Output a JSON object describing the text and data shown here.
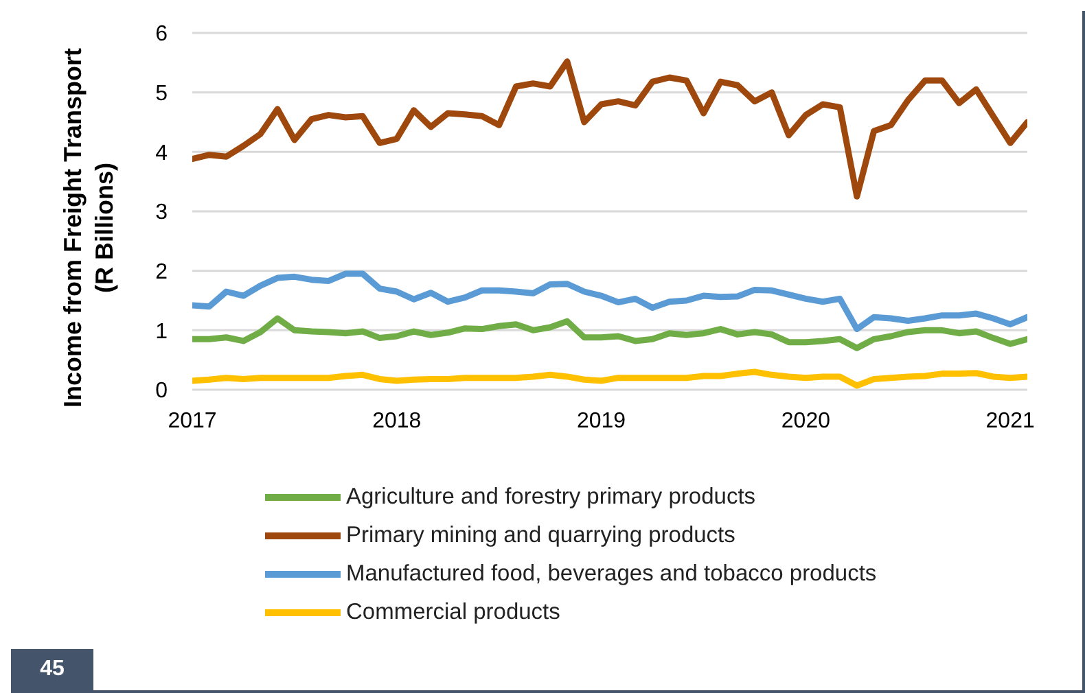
{
  "chart_data": {
    "type": "line",
    "ylabel": "Income from Freight Transport\n(R Billions)",
    "x": [
      "2017-01",
      "2017-02",
      "2017-03",
      "2017-04",
      "2017-05",
      "2017-06",
      "2017-07",
      "2017-08",
      "2017-09",
      "2017-10",
      "2017-11",
      "2017-12",
      "2018-01",
      "2018-02",
      "2018-03",
      "2018-04",
      "2018-05",
      "2018-06",
      "2018-07",
      "2018-08",
      "2018-09",
      "2018-10",
      "2018-11",
      "2018-12",
      "2019-01",
      "2019-02",
      "2019-03",
      "2019-04",
      "2019-05",
      "2019-06",
      "2019-07",
      "2019-08",
      "2019-09",
      "2019-10",
      "2019-11",
      "2019-12",
      "2020-01",
      "2020-02",
      "2020-03",
      "2020-04",
      "2020-05",
      "2020-06",
      "2020-07",
      "2020-08",
      "2020-09",
      "2020-10",
      "2020-11",
      "2020-12",
      "2021-01",
      "2021-02"
    ],
    "series": [
      {
        "name": "Agriculture and forestry primary products",
        "color": "#70ad47",
        "values": [
          0.85,
          0.85,
          0.88,
          0.82,
          0.97,
          1.2,
          1.0,
          0.98,
          0.97,
          0.95,
          0.98,
          0.87,
          0.9,
          0.98,
          0.92,
          0.96,
          1.03,
          1.02,
          1.07,
          1.1,
          1.0,
          1.05,
          1.15,
          0.88,
          0.88,
          0.9,
          0.82,
          0.85,
          0.95,
          0.92,
          0.95,
          1.02,
          0.93,
          0.97,
          0.93,
          0.8,
          0.8,
          0.82,
          0.85,
          0.7,
          0.85,
          0.9,
          0.97,
          1.0,
          1.0,
          0.95,
          0.98,
          0.87,
          0.77,
          0.85
        ]
      },
      {
        "name": "Primary mining and quarrying products",
        "color": "#9e480e",
        "values": [
          3.88,
          3.95,
          3.92,
          4.1,
          4.3,
          4.72,
          4.2,
          4.55,
          4.62,
          4.58,
          4.6,
          4.15,
          4.22,
          4.7,
          4.42,
          4.65,
          4.63,
          4.6,
          4.45,
          5.1,
          5.15,
          5.1,
          5.52,
          4.5,
          4.8,
          4.85,
          4.78,
          5.18,
          5.25,
          5.2,
          4.65,
          5.18,
          5.12,
          4.85,
          5.0,
          4.28,
          4.62,
          4.8,
          4.75,
          3.25,
          4.35,
          4.45,
          4.87,
          5.2,
          5.2,
          4.82,
          5.05,
          4.6,
          4.15,
          4.5
        ]
      },
      {
        "name": "Manufactured food, beverages and tobacco products",
        "color": "#5b9bd5",
        "values": [
          1.42,
          1.4,
          1.65,
          1.58,
          1.75,
          1.88,
          1.9,
          1.85,
          1.83,
          1.95,
          1.95,
          1.7,
          1.65,
          1.52,
          1.63,
          1.48,
          1.55,
          1.67,
          1.67,
          1.65,
          1.62,
          1.77,
          1.78,
          1.65,
          1.58,
          1.47,
          1.53,
          1.38,
          1.48,
          1.5,
          1.58,
          1.56,
          1.57,
          1.68,
          1.67,
          1.6,
          1.53,
          1.48,
          1.53,
          1.02,
          1.22,
          1.2,
          1.16,
          1.2,
          1.25,
          1.25,
          1.28,
          1.2,
          1.1,
          1.22
        ]
      },
      {
        "name": "Commercial products",
        "color": "#ffc000",
        "values": [
          0.15,
          0.17,
          0.2,
          0.18,
          0.2,
          0.2,
          0.2,
          0.2,
          0.2,
          0.23,
          0.25,
          0.18,
          0.15,
          0.17,
          0.18,
          0.18,
          0.2,
          0.2,
          0.2,
          0.2,
          0.22,
          0.25,
          0.22,
          0.17,
          0.15,
          0.2,
          0.2,
          0.2,
          0.2,
          0.2,
          0.23,
          0.23,
          0.27,
          0.3,
          0.25,
          0.22,
          0.2,
          0.22,
          0.22,
          0.07,
          0.18,
          0.2,
          0.22,
          0.23,
          0.27,
          0.27,
          0.28,
          0.22,
          0.2,
          0.22
        ]
      }
    ],
    "xlim": [
      "2017-01",
      "2021-02"
    ],
    "xticks": [
      "2017",
      "2018",
      "2019",
      "2020",
      "2021"
    ],
    "ylim": [
      0,
      6
    ],
    "yticks": [
      0,
      1,
      2,
      3,
      4,
      5,
      6
    ],
    "grid": "y",
    "legend": "bottom",
    "marker": "none",
    "line_style": "solid",
    "annotations": [
      "45"
    ]
  }
}
